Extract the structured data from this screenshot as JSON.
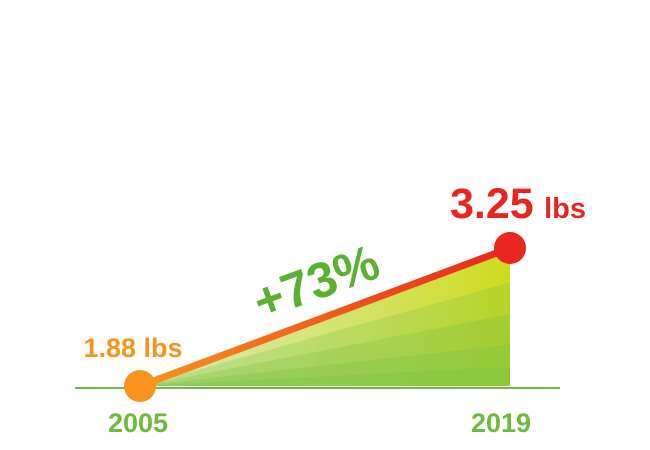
{
  "chart_data": {
    "type": "area",
    "x": [
      "2005",
      "2019"
    ],
    "y": [
      1.88,
      3.25
    ],
    "start_label": "1.88 lbs",
    "end_value_text": "3.25",
    "end_unit_text": "lbs",
    "change_label": "+73%",
    "xlabel": "",
    "ylabel": "",
    "grid": false,
    "legend": "none"
  },
  "colors": {
    "start_point": "#f7941d",
    "end_point": "#e8251f",
    "change_label": "#5ab031",
    "baseline": "#6cbb3c",
    "year_labels": "#6cbb3c",
    "area_light": "#fff799",
    "area_dark": "#7ac143"
  }
}
